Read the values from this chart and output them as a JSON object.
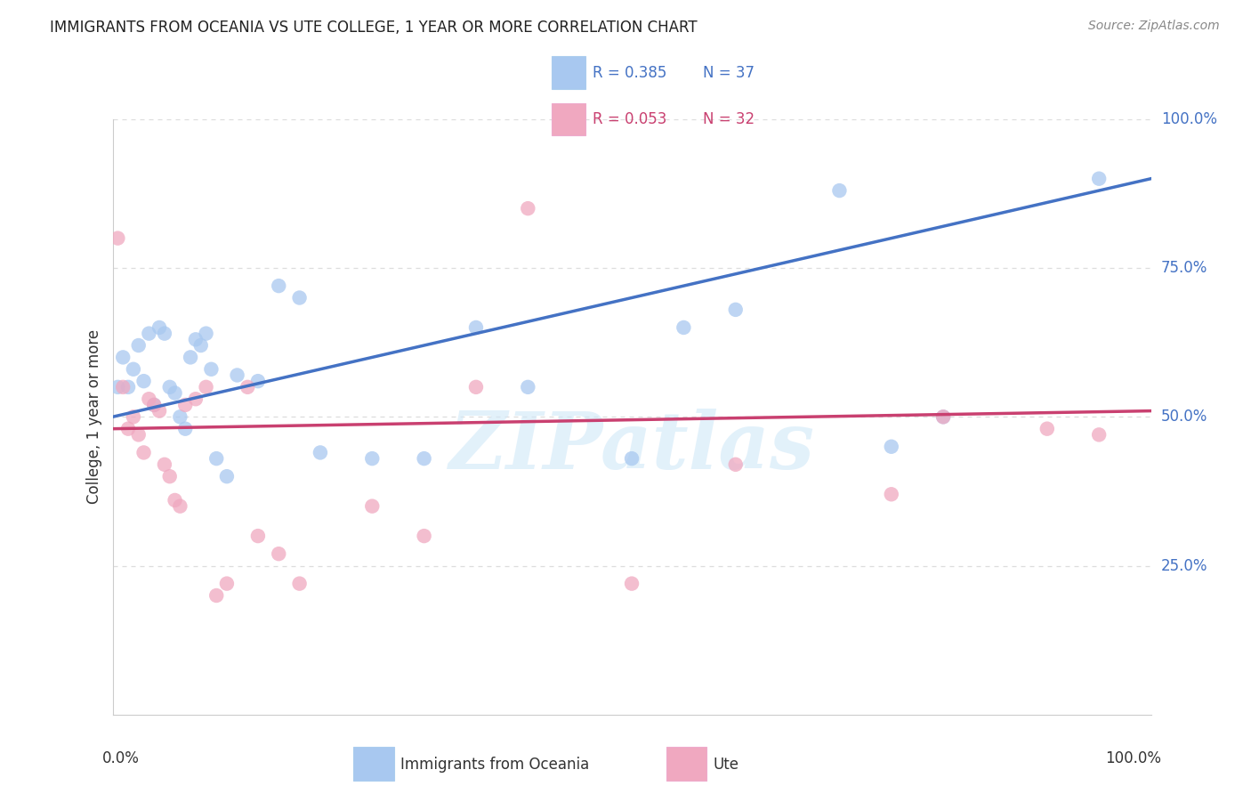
{
  "title": "IMMIGRANTS FROM OCEANIA VS UTE COLLEGE, 1 YEAR OR MORE CORRELATION CHART",
  "source": "Source: ZipAtlas.com",
  "ylabel": "College, 1 year or more",
  "legend_label1": "Immigrants from Oceania",
  "legend_label2": "Ute",
  "R1": "0.385",
  "N1": "37",
  "R2": "0.053",
  "N2": "32",
  "blue_scatter_color": "#A8C8F0",
  "pink_scatter_color": "#F0A8C0",
  "blue_line_color": "#4472C4",
  "pink_line_color": "#C94070",
  "blue_x": [
    0.5,
    1.0,
    1.5,
    2.0,
    2.5,
    3.0,
    3.5,
    4.0,
    4.5,
    5.0,
    5.5,
    6.0,
    6.5,
    7.0,
    7.5,
    8.0,
    8.5,
    9.0,
    9.5,
    10.0,
    11.0,
    12.0,
    14.0,
    16.0,
    18.0,
    20.0,
    25.0,
    30.0,
    35.0,
    40.0,
    50.0,
    55.0,
    60.0,
    70.0,
    75.0,
    80.0,
    95.0
  ],
  "blue_y": [
    55,
    60,
    55,
    58,
    62,
    56,
    64,
    52,
    65,
    64,
    55,
    54,
    50,
    48,
    60,
    63,
    62,
    64,
    58,
    43,
    40,
    57,
    56,
    72,
    70,
    44,
    43,
    43,
    65,
    55,
    43,
    65,
    68,
    88,
    45,
    50,
    90
  ],
  "pink_x": [
    0.5,
    1.0,
    1.5,
    2.0,
    2.5,
    3.0,
    3.5,
    4.0,
    4.5,
    5.0,
    5.5,
    6.0,
    6.5,
    7.0,
    8.0,
    9.0,
    10.0,
    11.0,
    13.0,
    14.0,
    16.0,
    18.0,
    25.0,
    30.0,
    35.0,
    40.0,
    50.0,
    60.0,
    75.0,
    80.0,
    90.0,
    95.0
  ],
  "pink_y": [
    80,
    55,
    48,
    50,
    47,
    44,
    53,
    52,
    51,
    42,
    40,
    36,
    35,
    52,
    53,
    55,
    20,
    22,
    55,
    30,
    27,
    22,
    35,
    30,
    55,
    85,
    22,
    42,
    37,
    50,
    48,
    47
  ],
  "blue_line_x0": 0,
  "blue_line_y0": 50,
  "blue_line_x1": 100,
  "blue_line_y1": 90,
  "pink_line_x0": 0,
  "pink_line_y0": 48,
  "pink_line_x1": 100,
  "pink_line_y1": 51,
  "xlim": [
    0,
    100
  ],
  "ylim": [
    0,
    100
  ],
  "ytick_positions": [
    25,
    50,
    75,
    100
  ],
  "ytick_labels": [
    "25.0%",
    "50.0%",
    "75.0%",
    "100.0%"
  ],
  "background": "#FFFFFF",
  "grid_color": "#DDDDDD",
  "watermark": "ZIPatlas"
}
